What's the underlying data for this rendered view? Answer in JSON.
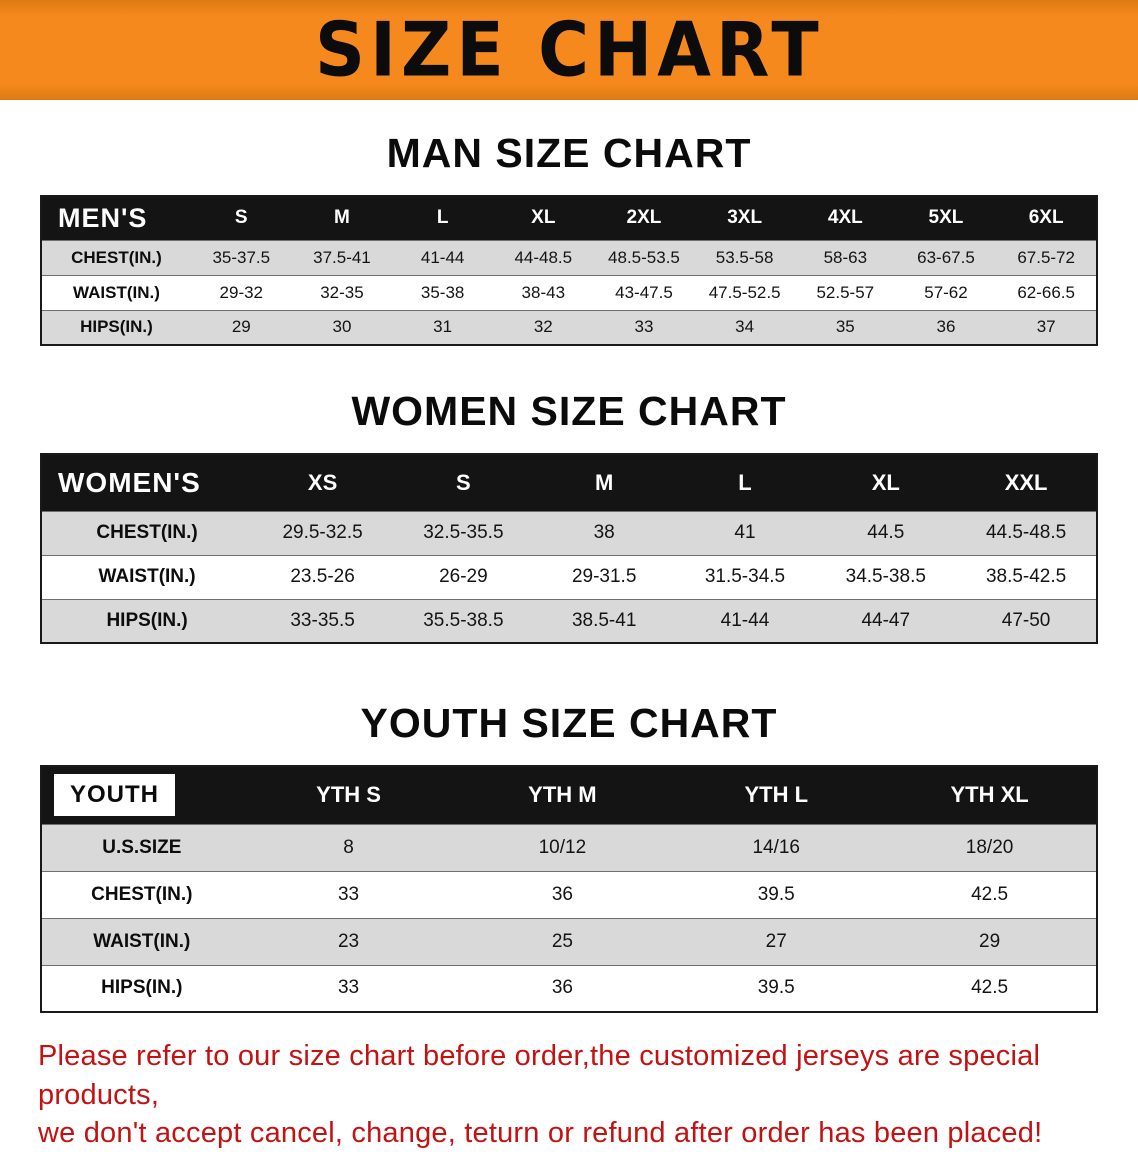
{
  "colors": {
    "banner-orange": "#f6891e",
    "header-black": "#141414",
    "row-gray": "#d9d9d9",
    "notice-red": "#c41212"
  },
  "banner": {
    "title": "SIZE CHART"
  },
  "sections": [
    {
      "id": "men",
      "heading": "MAN SIZE CHART",
      "header": [
        "MEN'S",
        "S",
        "M",
        "L",
        "XL",
        "2XL",
        "3XL",
        "4XL",
        "5XL",
        "6XL"
      ],
      "rows": [
        [
          "CHEST(IN.)",
          "35-37.5",
          "37.5-41",
          "41-44",
          "44-48.5",
          "48.5-53.5",
          "53.5-58",
          "58-63",
          "63-67.5",
          "67.5-72"
        ],
        [
          "WAIST(IN.)",
          "29-32",
          "32-35",
          "35-38",
          "38-43",
          "43-47.5",
          "47.5-52.5",
          "52.5-57",
          "57-62",
          "62-66.5"
        ],
        [
          "HIPS(IN.)",
          "29",
          "30",
          "31",
          "32",
          "33",
          "34",
          "35",
          "36",
          "37"
        ]
      ]
    },
    {
      "id": "women",
      "heading": "WOMEN SIZE CHART",
      "header": [
        "WOMEN'S",
        "XS",
        "S",
        "M",
        "L",
        "XL",
        "XXL"
      ],
      "rows": [
        [
          "CHEST(IN.)",
          "29.5-32.5",
          "32.5-35.5",
          "38",
          "41",
          "44.5",
          "44.5-48.5"
        ],
        [
          "WAIST(IN.)",
          "23.5-26",
          "26-29",
          "29-31.5",
          "31.5-34.5",
          "34.5-38.5",
          "38.5-42.5"
        ],
        [
          "HIPS(IN.)",
          "33-35.5",
          "35.5-38.5",
          "38.5-41",
          "41-44",
          "44-47",
          "47-50"
        ]
      ]
    },
    {
      "id": "youth",
      "heading": "YOUTH SIZE CHART",
      "corner_badge": true,
      "header": [
        "YOUTH",
        "YTH S",
        "YTH M",
        "YTH L",
        "YTH XL"
      ],
      "rows": [
        [
          "U.S.SIZE",
          "8",
          "10/12",
          "14/16",
          "18/20"
        ],
        [
          "CHEST(IN.)",
          "33",
          "36",
          "39.5",
          "42.5"
        ],
        [
          "WAIST(IN.)",
          "23",
          "25",
          "27",
          "29"
        ],
        [
          "HIPS(IN.)",
          "33",
          "36",
          "39.5",
          "42.5"
        ]
      ]
    }
  ],
  "notice": {
    "line1": "Please refer to our size chart before order,the customized jerseys are special products,",
    "line2": "we don't accept cancel, change, teturn or refund after order has been placed!"
  }
}
